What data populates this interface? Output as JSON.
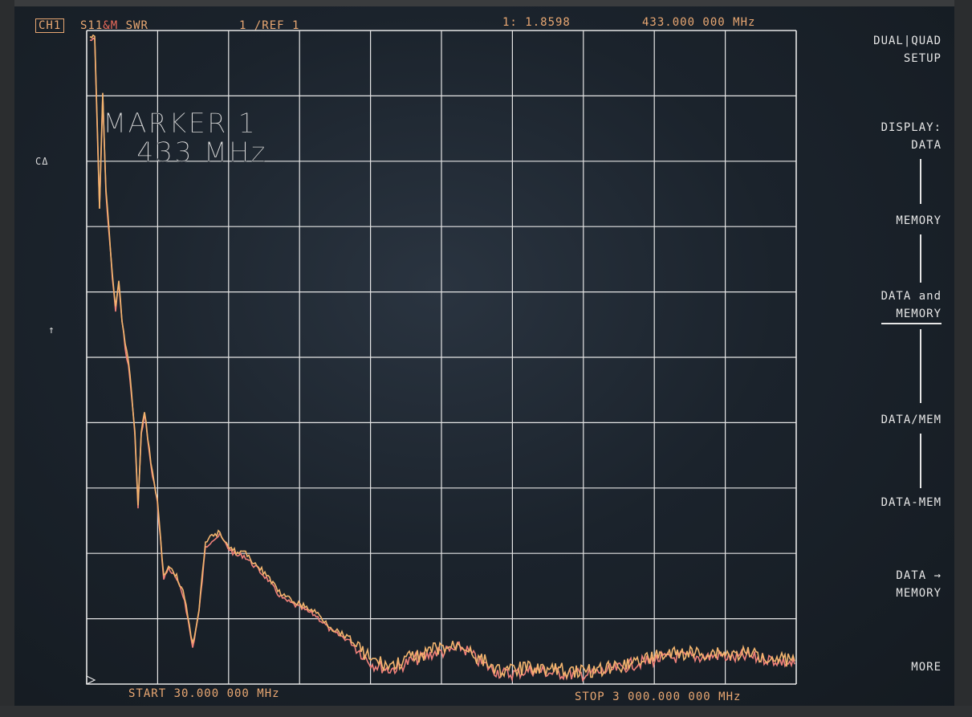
{
  "header": {
    "channel": "CH1",
    "param_prefix": "S11",
    "param_amp": "&M",
    "format": "SWR",
    "scale": "1  /REF 1",
    "marker_readout": "1: 1.8598",
    "marker_freq": "433.000 000 MHz"
  },
  "left_indicators": {
    "ca": "CΔ",
    "ref_arrow": "↑"
  },
  "marker_label": {
    "line1": "MARKER 1",
    "line2": "433 MHz"
  },
  "footer": {
    "start": "START  30.000 000 MHz",
    "stop": "STOP 3 000.000 000 MHz"
  },
  "softkeys": {
    "menu_title_1": "DUAL|QUAD",
    "menu_title_2": "SETUP",
    "display_1": "DISPLAY:",
    "display_2": "DATA",
    "memory": "MEMORY",
    "data_and_1": "DATA and",
    "data_and_2": "MEMORY",
    "data_div_mem": "DATA/MEM",
    "data_minus_mem": "DATA-MEM",
    "data_to_1": "DATA →",
    "data_to_2": "MEMORY",
    "more": "MORE"
  },
  "colors": {
    "grid": "#e6e6e6",
    "trace_data": "#f2b46e",
    "trace_memory": "#f0807a",
    "status": "#e8a772"
  }
}
